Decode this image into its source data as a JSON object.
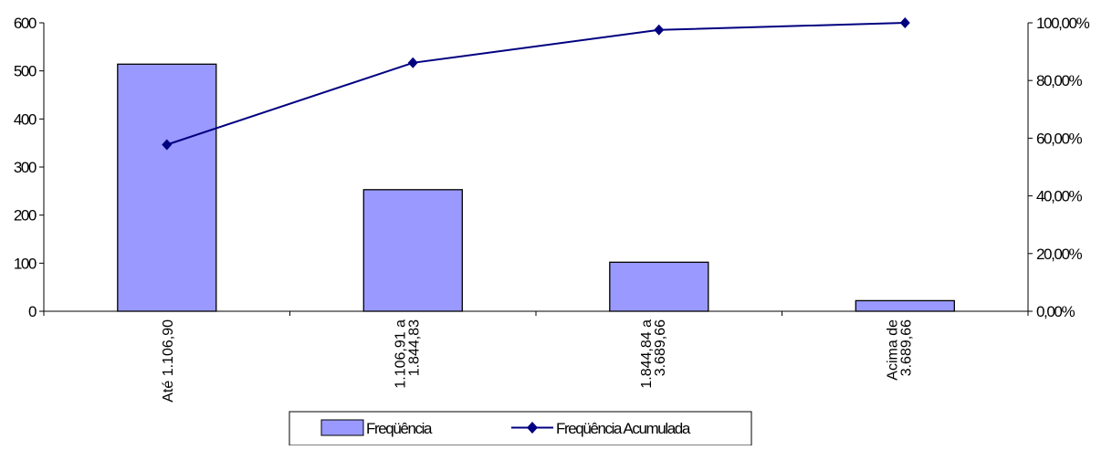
{
  "chart_data": {
    "type": "bar",
    "categories": [
      [
        "Até 1.106,90"
      ],
      [
        "1.106,91 a",
        "1.844,83"
      ],
      [
        "1.844,84 a",
        "3.689,66"
      ],
      [
        "Acima de",
        "3.689,66"
      ]
    ],
    "series": [
      {
        "name": "Freqüência",
        "type": "bar",
        "axis": "left",
        "values": [
          514,
          253,
          102,
          22
        ],
        "color": "#9999ff"
      },
      {
        "name": "Freqüência Acumulada",
        "type": "line",
        "axis": "right",
        "values": [
          0.5774,
          0.8615,
          0.9753,
          1.0
        ],
        "color": "#000080"
      }
    ],
    "ylim_left": [
      0,
      600
    ],
    "yticks_left": [
      "0",
      "100",
      "200",
      "300",
      "400",
      "500",
      "600"
    ],
    "ylim_right": [
      0,
      1
    ],
    "yticks_right": [
      "0,00%",
      "20,00%",
      "40,00%",
      "60,00%",
      "80,00%",
      "100,00%"
    ],
    "grid": false,
    "legend": {
      "position": "bottom",
      "entries": [
        "Freqüência",
        "Freqüência Acumulada"
      ]
    }
  }
}
